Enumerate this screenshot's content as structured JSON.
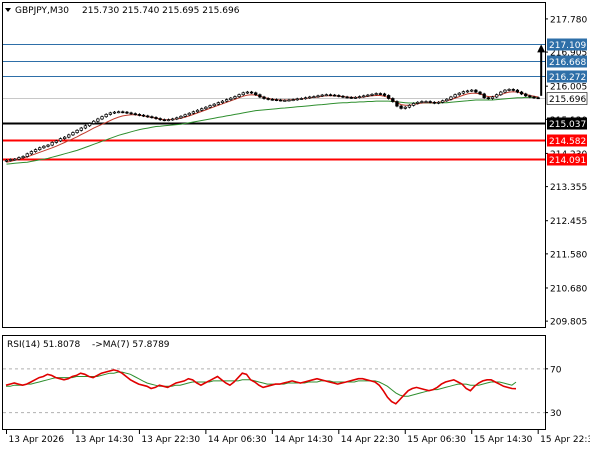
{
  "header": {
    "symbol_tf": "GBPJPY,M30",
    "ohlc": "215.730 215.740 215.695 215.696"
  },
  "rsi_header": {
    "label": "RSI(14) 51.8078",
    "ma_label": "->MA(7) 57.8789"
  },
  "colors": {
    "background": "#ffffff",
    "frame": "#000000",
    "blue_level": "#2e6fa8",
    "red_level": "#ff0000",
    "black_level": "#000000",
    "ma_fast": "#c0392b",
    "ma_slow": "#2f8f2f",
    "rsi": "#e00000",
    "rsi_ma": "#2f8f2f",
    "arrow": "#000000"
  },
  "chart_data": [
    {
      "type": "candlestick",
      "title": "GBPJPY,M30",
      "ylim": [
        209.65,
        218.2
      ],
      "y_ticks": [
        "217.780",
        "216.905",
        "216.005",
        "215.130",
        "214.230",
        "213.355",
        "212.455",
        "211.580",
        "210.680",
        "209.805"
      ],
      "x_ticks": [
        "13 Apr 2026",
        "13 Apr 14:30",
        "13 Apr 22:30",
        "14 Apr 06:30",
        "14 Apr 14:30",
        "14 Apr 22:30",
        "15 Apr 06:30",
        "15 Apr 14:30",
        "15 Apr 22:30"
      ],
      "x_tick_idx": [
        0,
        16,
        32,
        48,
        64,
        80,
        96,
        112,
        128
      ],
      "current_price": {
        "label": "215.696",
        "value": 215.696
      },
      "levels": [
        {
          "label": "217.109",
          "value": 217.109,
          "color": "blue"
        },
        {
          "label": "216.668",
          "value": 216.668,
          "color": "blue"
        },
        {
          "label": "216.272",
          "value": 216.272,
          "color": "blue"
        },
        {
          "label": "215.037",
          "value": 215.037,
          "color": "black"
        },
        {
          "label": "214.582",
          "value": 214.582,
          "color": "red"
        },
        {
          "label": "214.091",
          "value": 214.091,
          "color": "red"
        }
      ],
      "arrow": {
        "from": 215.75,
        "to": 217.109
      },
      "price_series": [
        214.05,
        214.07,
        214.08,
        214.12,
        214.15,
        214.22,
        214.28,
        214.33,
        214.38,
        214.42,
        214.45,
        214.52,
        214.56,
        214.62,
        214.66,
        214.72,
        214.78,
        214.84,
        214.9,
        214.96,
        215.02,
        215.08,
        215.14,
        215.2,
        215.26,
        215.3,
        215.32,
        215.33,
        215.32,
        215.3,
        215.28,
        215.26,
        215.24,
        215.22,
        215.2,
        215.18,
        215.15,
        215.12,
        215.11,
        215.12,
        215.14,
        215.17,
        215.21,
        215.25,
        215.29,
        215.33,
        215.37,
        215.41,
        215.45,
        215.49,
        215.53,
        215.57,
        215.61,
        215.65,
        215.69,
        215.73,
        215.78,
        215.83,
        215.85,
        215.83,
        215.78,
        215.72,
        215.68,
        215.66,
        215.65,
        215.64,
        215.63,
        215.63,
        215.64,
        215.65,
        215.67,
        215.68,
        215.7,
        215.72,
        215.73,
        215.75,
        215.77,
        215.78,
        215.77,
        215.76,
        215.74,
        215.72,
        215.71,
        215.7,
        215.71,
        215.73,
        215.75,
        215.77,
        215.79,
        215.81,
        215.8,
        215.76,
        215.68,
        215.6,
        215.48,
        215.42,
        215.45,
        215.5,
        215.55,
        215.58,
        215.6,
        215.6,
        215.58,
        215.56,
        215.58,
        215.62,
        215.66,
        215.72,
        215.78,
        215.82,
        215.86,
        215.88,
        215.9,
        215.85,
        215.8,
        215.7,
        215.68,
        215.72,
        215.78,
        215.85,
        215.9,
        215.92,
        215.9,
        215.85,
        215.8,
        215.75,
        215.72,
        215.7,
        215.696
      ],
      "ma_fast_series": [
        214.0,
        214.02,
        214.05,
        214.08,
        214.11,
        214.14,
        214.18,
        214.22,
        214.26,
        214.3,
        214.34,
        214.38,
        214.42,
        214.47,
        214.52,
        214.57,
        214.62,
        214.67,
        214.73,
        214.78,
        214.84,
        214.9,
        214.95,
        215.0,
        215.05,
        215.1,
        215.15,
        215.19,
        215.22,
        215.24,
        215.25,
        215.25,
        215.24,
        215.22,
        215.2,
        215.18,
        215.16,
        215.14,
        215.12,
        215.12,
        215.13,
        215.14,
        215.16,
        215.19,
        215.22,
        215.26,
        215.3,
        215.34,
        215.38,
        215.42,
        215.46,
        215.5,
        215.54,
        215.58,
        215.62,
        215.66,
        215.7,
        215.74,
        215.77,
        215.78,
        215.77,
        215.74,
        215.71,
        215.68,
        215.66,
        215.65,
        215.64,
        215.64,
        215.64,
        215.65,
        215.66,
        215.67,
        215.68,
        215.7,
        215.71,
        215.72,
        215.74,
        215.75,
        215.75,
        215.75,
        215.74,
        215.73,
        215.72,
        215.71,
        215.71,
        215.71,
        215.72,
        215.74,
        215.75,
        215.76,
        215.76,
        215.74,
        215.7,
        215.64,
        215.57,
        215.52,
        215.5,
        215.5,
        215.52,
        215.54,
        215.56,
        215.57,
        215.57,
        215.57,
        215.58,
        215.6,
        215.62,
        215.65,
        215.69,
        215.73,
        215.77,
        215.8,
        215.82,
        215.82,
        215.8,
        215.76,
        215.73,
        215.73,
        215.75,
        215.78,
        215.82,
        215.85,
        215.86,
        215.85,
        215.82,
        215.79,
        215.76,
        215.74,
        215.72
      ],
      "ma_slow_series": [
        213.95,
        213.96,
        213.97,
        213.98,
        213.99,
        214.0,
        214.02,
        214.04,
        214.06,
        214.08,
        214.1,
        214.13,
        214.16,
        214.19,
        214.22,
        214.25,
        214.28,
        214.31,
        214.35,
        214.39,
        214.43,
        214.47,
        214.51,
        214.55,
        214.59,
        214.63,
        214.67,
        214.71,
        214.74,
        214.77,
        214.8,
        214.83,
        214.86,
        214.88,
        214.9,
        214.92,
        214.94,
        214.95,
        214.96,
        214.97,
        214.98,
        214.99,
        215.0,
        215.02,
        215.04,
        215.06,
        215.08,
        215.1,
        215.12,
        215.14,
        215.16,
        215.18,
        215.2,
        215.22,
        215.24,
        215.26,
        215.28,
        215.3,
        215.32,
        215.34,
        215.36,
        215.37,
        215.38,
        215.39,
        215.4,
        215.41,
        215.42,
        215.43,
        215.44,
        215.45,
        215.46,
        215.47,
        215.48,
        215.49,
        215.5,
        215.51,
        215.52,
        215.53,
        215.54,
        215.55,
        215.56,
        215.57,
        215.57,
        215.58,
        215.58,
        215.59,
        215.59,
        215.6,
        215.6,
        215.61,
        215.61,
        215.61,
        215.61,
        215.6,
        215.59,
        215.58,
        215.57,
        215.56,
        215.56,
        215.56,
        215.56,
        215.56,
        215.56,
        215.56,
        215.56,
        215.57,
        215.57,
        215.58,
        215.59,
        215.6,
        215.61,
        215.62,
        215.63,
        215.64,
        215.64,
        215.64,
        215.64,
        215.64,
        215.65,
        215.66,
        215.67,
        215.68,
        215.69,
        215.7,
        215.7,
        215.71,
        215.71,
        215.71,
        215.72
      ]
    },
    {
      "type": "line",
      "title": "RSI(14)",
      "ylim": [
        15,
        100
      ],
      "y_ticks": [
        "70",
        "30"
      ],
      "dashed_levels": [
        70,
        30
      ],
      "series": [
        {
          "name": "RSI(14)",
          "values": [
            55,
            56,
            57,
            56,
            55,
            56,
            58,
            60,
            62,
            63,
            65,
            64,
            62,
            61,
            60,
            61,
            63,
            64,
            66,
            65,
            63,
            62,
            64,
            66,
            67,
            68,
            69,
            68,
            66,
            63,
            60,
            58,
            56,
            55,
            54,
            52,
            53,
            55,
            54,
            53,
            55,
            57,
            58,
            59,
            61,
            60,
            57,
            55,
            57,
            59,
            61,
            63,
            60,
            57,
            55,
            58,
            62,
            66,
            65,
            60,
            58,
            55,
            53,
            54,
            55,
            56,
            56,
            57,
            58,
            59,
            58,
            57,
            58,
            59,
            60,
            61,
            60,
            59,
            58,
            57,
            56,
            57,
            58,
            59,
            60,
            61,
            61,
            60,
            59,
            58,
            55,
            50,
            44,
            40,
            38,
            42,
            46,
            50,
            52,
            53,
            52,
            51,
            50,
            51,
            53,
            56,
            58,
            59,
            60,
            58,
            56,
            52,
            50,
            54,
            57,
            59,
            60,
            60,
            58,
            56,
            54,
            53,
            52,
            51.8
          ]
        },
        {
          "name": "MA(7)",
          "values": [
            54,
            54,
            55,
            55,
            55,
            56,
            56,
            57,
            58,
            59,
            60,
            61,
            62,
            62,
            62,
            62,
            62,
            63,
            63,
            63,
            63,
            63,
            63,
            64,
            65,
            66,
            66,
            67,
            67,
            66,
            65,
            63,
            61,
            59,
            57,
            56,
            55,
            54,
            54,
            54,
            54,
            55,
            55,
            56,
            57,
            58,
            58,
            58,
            58,
            58,
            59,
            59,
            59,
            59,
            59,
            59,
            59,
            60,
            60,
            60,
            59,
            58,
            57,
            56,
            56,
            56,
            56,
            56,
            57,
            57,
            57,
            57,
            57,
            58,
            58,
            58,
            59,
            59,
            59,
            58,
            58,
            58,
            58,
            58,
            58,
            59,
            59,
            59,
            59,
            59,
            58,
            56,
            54,
            51,
            48,
            46,
            45,
            45,
            46,
            47,
            48,
            49,
            50,
            51,
            51,
            52,
            53,
            54,
            55,
            56,
            56,
            56,
            55,
            55,
            55,
            56,
            57,
            58,
            58,
            58,
            57,
            56,
            55,
            57.88
          ]
        }
      ]
    }
  ]
}
